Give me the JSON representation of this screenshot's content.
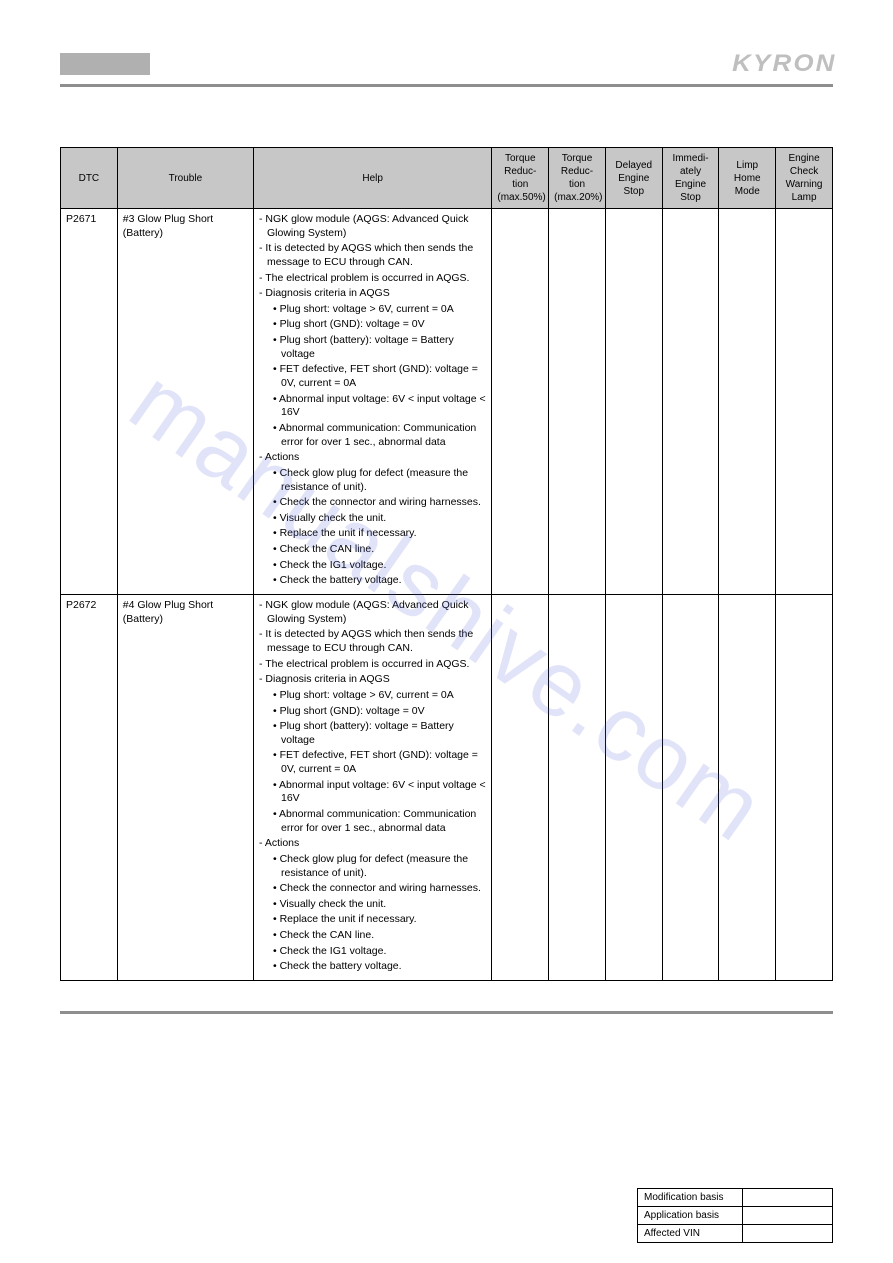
{
  "header": {
    "brand": "KYRON"
  },
  "watermark": "manualshive.com",
  "table": {
    "columns": [
      "DTC",
      "Trouble",
      "Help",
      "Torque Reduc-tion (max.50%)",
      "Torque Reduc-tion (max.20%)",
      "Delayed Engine Stop",
      "Immedi-ately Engine Stop",
      "Limp Home Mode",
      "Engine Check Warning Lamp"
    ],
    "rows": [
      {
        "dtc": "P2671",
        "trouble": "#3 Glow Plug Short (Battery)",
        "help": {
          "dash": [
            "NGK glow module (AQGS: Advanced Quick Glowing System)",
            "It is detected by AQGS which then sends the message to ECU through CAN.",
            "The electrical problem is occurred in AQGS.",
            "Diagnosis criteria in AQGS"
          ],
          "bullets1": [
            "Plug short: voltage > 6V, current = 0A",
            "Plug short (GND): voltage = 0V",
            "Plug short (battery): voltage = Battery voltage",
            "FET defective, FET short (GND): voltage = 0V, current = 0A",
            "Abnormal input voltage: 6V < input voltage < 16V",
            "Abnormal communication: Communication error for over 1 sec., abnormal data"
          ],
          "dash2": [
            "Actions"
          ],
          "bullets2": [
            "Check glow plug for defect (measure the resistance of unit).",
            "Check the connector and wiring harnesses.",
            "Visually check the unit.",
            "Replace the unit if necessary.",
            "Check the CAN line.",
            "Check the IG1 voltage.",
            "Check the battery voltage."
          ]
        }
      },
      {
        "dtc": "P2672",
        "trouble": "#4 Glow Plug Short (Battery)",
        "help": {
          "dash": [
            "NGK glow module (AQGS: Advanced Quick Glowing System)",
            "It is detected by AQGS which then sends the message to ECU through CAN.",
            "The electrical problem is occurred in AQGS.",
            "Diagnosis criteria in AQGS"
          ],
          "bullets1": [
            "Plug short: voltage > 6V, current = 0A",
            "Plug short (GND): voltage = 0V",
            "Plug short (battery): voltage = Battery voltage",
            "FET defective, FET short (GND): voltage = 0V, current = 0A",
            "Abnormal input voltage: 6V < input voltage < 16V",
            "Abnormal communication: Communication error for over 1 sec., abnormal data"
          ],
          "dash2": [
            "Actions"
          ],
          "bullets2": [
            "Check glow plug for defect (measure the resistance of unit).",
            "Check the connector and wiring harnesses.",
            "Visually check the unit.",
            "Replace the unit if necessary.",
            "Check the CAN line.",
            "Check the IG1 voltage.",
            "Check the battery voltage."
          ]
        }
      }
    ]
  },
  "footer": {
    "rows": [
      {
        "label": "Modification basis",
        "value": ""
      },
      {
        "label": "Application basis",
        "value": ""
      },
      {
        "label": "Affected VIN",
        "value": ""
      }
    ]
  },
  "colors": {
    "header_bg": "#c7c7c7",
    "rule": "#8e8e8e",
    "brand": "#bfbfbf",
    "watermark": "rgba(88,100,220,0.18)"
  }
}
